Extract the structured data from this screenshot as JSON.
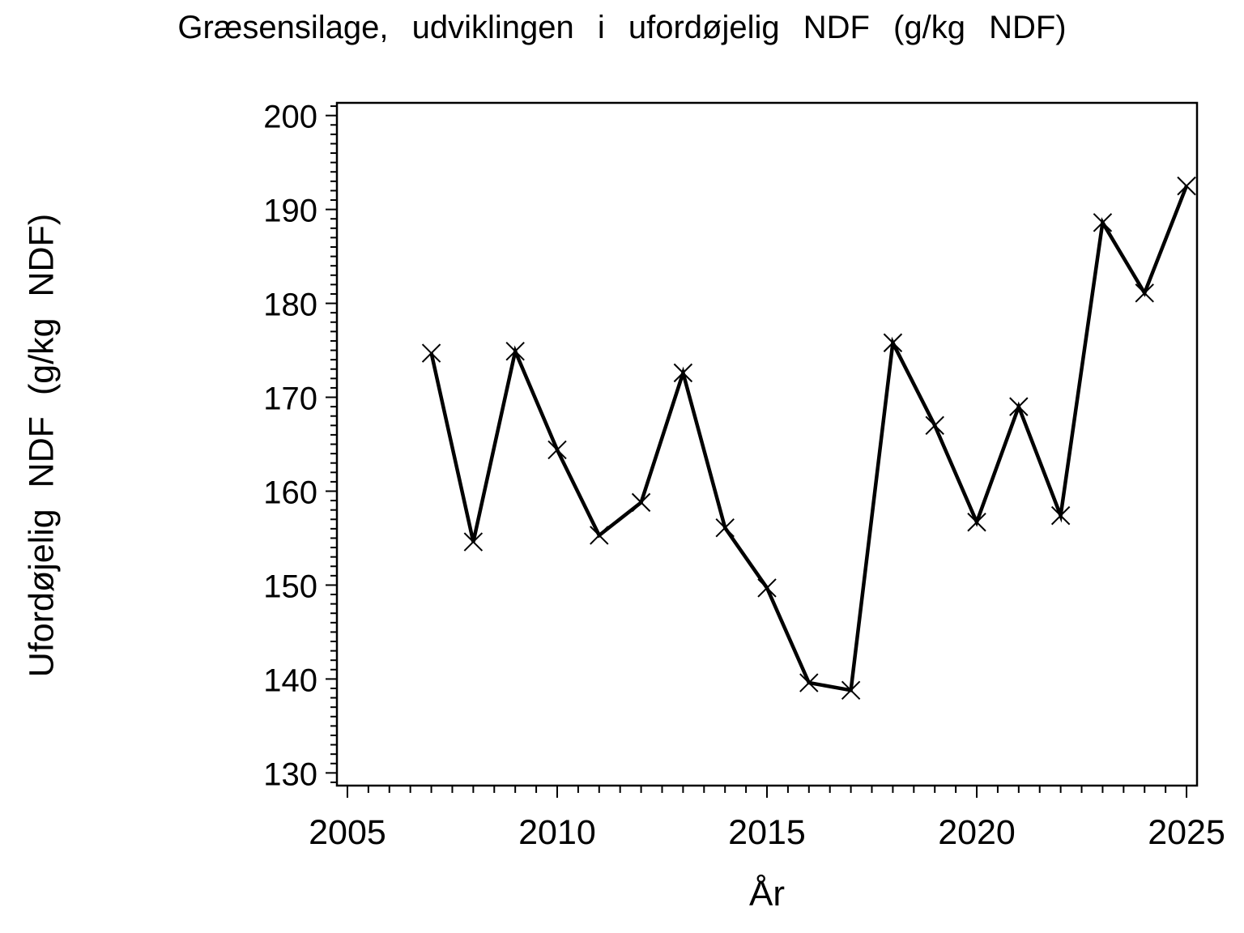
{
  "chart_data": {
    "type": "line",
    "title": "Græsensilage, udviklingen i ufordøjelig NDF (g/kg NDF)",
    "xlabel": "År",
    "ylabel": "Ufordøjelig NDF (g/kg NDF)",
    "x": [
      2007,
      2008,
      2009,
      2010,
      2011,
      2012,
      2013,
      2014,
      2015,
      2016,
      2017,
      2018,
      2019,
      2020,
      2021,
      2022,
      2023,
      2024,
      2025
    ],
    "values": [
      174.7,
      154.6,
      174.9,
      164.4,
      155.3,
      158.8,
      172.6,
      156.1,
      149.7,
      139.6,
      138.8,
      175.8,
      167.0,
      156.7,
      169.0,
      157.4,
      188.6,
      181.1,
      192.5
    ],
    "marker": "x",
    "line_style": "solid",
    "grid": false,
    "legend": "none",
    "colors": {
      "line": "#000000",
      "marker": "#000000",
      "axis": "#000000",
      "text": "#000000",
      "background": "#ffffff"
    },
    "x_axis": {
      "min": 2004.75,
      "max": 2025.25,
      "major_ticks": [
        2005,
        2010,
        2015,
        2020,
        2025
      ],
      "minor_step": 0.5
    },
    "y_axis": {
      "min": 128.65,
      "max": 201.35,
      "major_ticks": [
        130,
        140,
        150,
        160,
        170,
        180,
        190,
        200
      ],
      "minor_step": 1
    }
  }
}
